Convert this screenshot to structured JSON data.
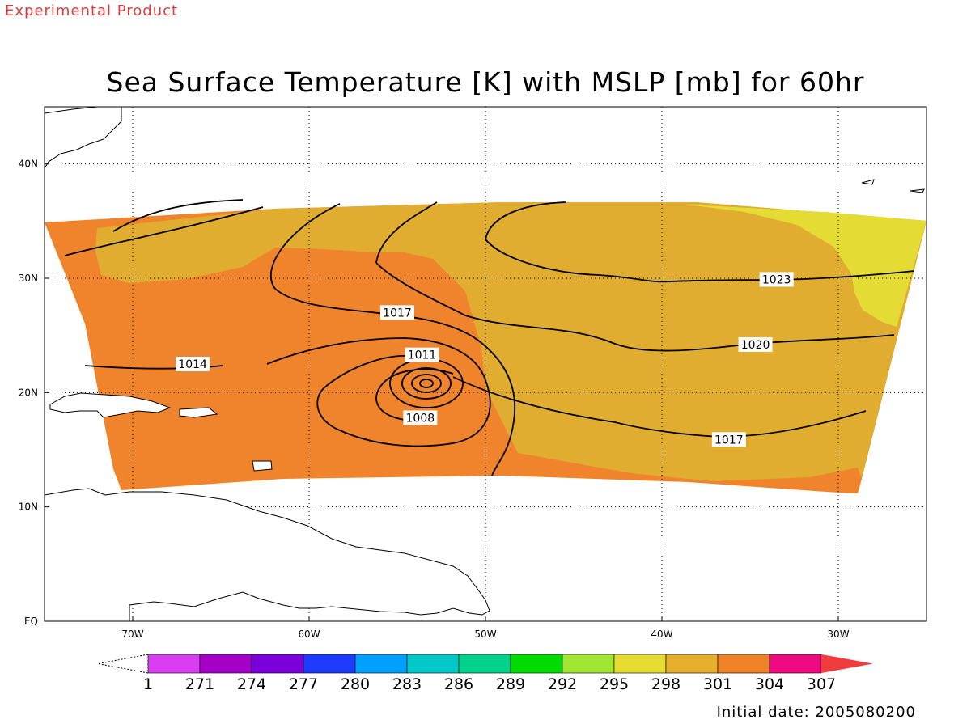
{
  "header": {
    "product_label": "Experimental Product",
    "title": "Sea Surface Temperature [K] with MSLP [mb] for 60hr"
  },
  "footer": {
    "initial_date": "Initial date: 2005080200"
  },
  "map": {
    "region": "Tropical North Atlantic",
    "lon_range": [
      -75,
      -25
    ],
    "lat_range": [
      0,
      45
    ],
    "lon_ticks": [
      {
        "value": -70,
        "label": "70W"
      },
      {
        "value": -60,
        "label": "60W"
      },
      {
        "value": -50,
        "label": "50W"
      },
      {
        "value": -40,
        "label": "40W"
      },
      {
        "value": -30,
        "label": "30W"
      }
    ],
    "lat_ticks": [
      {
        "value": 0,
        "label": "EQ"
      },
      {
        "value": 10,
        "label": "10N"
      },
      {
        "value": 20,
        "label": "20N"
      },
      {
        "value": 30,
        "label": "30N"
      },
      {
        "value": 40,
        "label": "40N"
      }
    ],
    "grid": true,
    "grid_style": "dotted"
  },
  "sst_field": {
    "units": "K",
    "regions": [
      {
        "name": "warm-301-304",
        "color": "#f0842c"
      },
      {
        "name": "mid-298-301",
        "color": "#e0ad30"
      },
      {
        "name": "cool-295-298",
        "color": "#e4dc34"
      }
    ]
  },
  "mslp_contours": {
    "units": "mb",
    "labels": [
      {
        "value": "1023",
        "lon": -33.5,
        "lat": 29.9
      },
      {
        "value": "1020",
        "lon": -34.7,
        "lat": 24.2
      },
      {
        "value": "1017",
        "lon": -36.2,
        "lat": 15.9
      },
      {
        "value": "1017",
        "lon": -55.0,
        "lat": 27.0
      },
      {
        "value": "1014",
        "lon": -66.6,
        "lat": 22.5
      },
      {
        "value": "1011",
        "lon": -53.6,
        "lat": 23.3
      },
      {
        "value": "1008",
        "lon": -53.7,
        "lat": 17.8
      }
    ]
  },
  "colorbar": {
    "labels": [
      "1",
      "271",
      "274",
      "277",
      "280",
      "283",
      "286",
      "289",
      "292",
      "295",
      "298",
      "301",
      "304",
      "307"
    ],
    "colors": [
      "#d93ff0",
      "#a400c8",
      "#7b00dc",
      "#1e3cff",
      "#00a0ff",
      "#00c8c8",
      "#00d28c",
      "#00dc00",
      "#a0e632",
      "#e6dc32",
      "#e6af2d",
      "#f08228",
      "#f00a82",
      "#f03c3c"
    ],
    "under_color": "#ffffff",
    "over_color": "#f03c3c"
  }
}
